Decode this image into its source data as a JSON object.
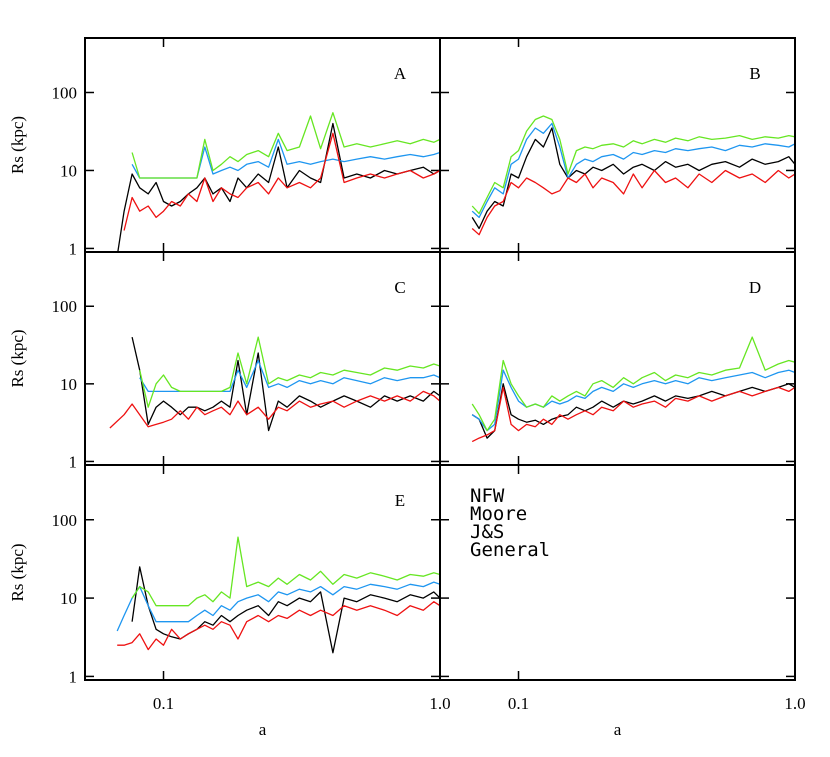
{
  "chart_data": [
    {
      "type": "line",
      "label": "A",
      "ylabel": "Rs (kpc)",
      "xlog": true,
      "ylog": true,
      "xlim": [
        0.052,
        1.0
      ],
      "ylim": [
        0.9,
        500
      ],
      "xticks": [
        0.1,
        {
          "value": 1,
          "label": "1.0"
        }
      ],
      "yticks": [
        1,
        10,
        100
      ],
      "x": [
        0.068,
        0.072,
        0.077,
        0.082,
        0.088,
        0.094,
        0.1,
        0.107,
        0.115,
        0.123,
        0.132,
        0.141,
        0.151,
        0.162,
        0.174,
        0.186,
        0.2,
        0.22,
        0.24,
        0.26,
        0.28,
        0.31,
        0.34,
        0.37,
        0.41,
        0.45,
        0.5,
        0.56,
        0.63,
        0.7,
        0.78,
        0.87,
        0.95,
        1.0
      ],
      "series": [
        {
          "name": "NFW",
          "color": "#000000",
          "values": [
            0.8,
            3,
            9,
            6,
            5,
            7,
            4,
            3.5,
            4,
            5,
            6,
            8,
            5,
            6,
            4,
            8,
            6,
            9,
            7,
            20,
            6,
            10,
            8,
            7,
            40,
            8,
            9,
            8,
            10,
            9,
            10,
            11,
            9,
            10
          ]
        },
        {
          "name": "Moore",
          "color": "#1e96f0",
          "values": [
            null,
            null,
            12,
            8,
            8,
            8,
            8,
            8,
            8,
            8,
            8,
            20,
            9,
            10,
            11,
            10,
            12,
            13,
            11,
            25,
            12,
            13,
            12,
            13,
            14,
            13,
            14,
            15,
            14,
            15,
            16,
            15,
            16,
            17
          ]
        },
        {
          "name": "J&S",
          "color": "#66e622",
          "values": [
            null,
            null,
            17,
            8,
            8,
            8,
            8,
            8,
            8,
            8,
            8,
            25,
            10,
            12,
            15,
            13,
            16,
            18,
            15,
            30,
            18,
            20,
            50,
            19,
            55,
            20,
            22,
            20,
            22,
            24,
            22,
            25,
            23,
            25
          ]
        },
        {
          "name": "General",
          "color": "#ee1111",
          "values": [
            null,
            1.7,
            4.5,
            3,
            3.5,
            2.5,
            3,
            4,
            3.5,
            5,
            4,
            8,
            4,
            6,
            5,
            4.5,
            6,
            7,
            5,
            8,
            6,
            7,
            6,
            8,
            30,
            7,
            8,
            9,
            8,
            9,
            10,
            8,
            9,
            10
          ]
        }
      ]
    },
    {
      "type": "line",
      "label": "B",
      "xlog": true,
      "ylog": true,
      "xlim": [
        0.052,
        1.0
      ],
      "ylim": [
        0.9,
        500
      ],
      "xticks": [
        0.1,
        {
          "value": 1,
          "label": "1.0"
        }
      ],
      "yticks": [
        1,
        10,
        100
      ],
      "x": [
        0.068,
        0.072,
        0.077,
        0.082,
        0.088,
        0.094,
        0.1,
        0.107,
        0.115,
        0.123,
        0.132,
        0.141,
        0.151,
        0.162,
        0.174,
        0.186,
        0.2,
        0.22,
        0.24,
        0.26,
        0.28,
        0.31,
        0.34,
        0.37,
        0.41,
        0.45,
        0.5,
        0.56,
        0.63,
        0.7,
        0.78,
        0.87,
        0.95,
        1.0
      ],
      "series": [
        {
          "name": "NFW",
          "color": "#000000",
          "values": [
            2.5,
            1.8,
            3,
            4,
            3.5,
            9,
            8,
            15,
            25,
            20,
            35,
            12,
            8,
            10,
            9,
            11,
            10,
            12,
            9,
            11,
            12,
            10,
            13,
            11,
            12,
            10,
            12,
            13,
            11,
            14,
            12,
            13,
            15,
            12
          ]
        },
        {
          "name": "Moore",
          "color": "#1e96f0",
          "values": [
            3,
            2.5,
            4,
            6,
            5,
            12,
            14,
            25,
            35,
            30,
            40,
            20,
            8,
            12,
            14,
            13,
            15,
            16,
            14,
            17,
            16,
            18,
            17,
            19,
            18,
            19,
            20,
            18,
            21,
            20,
            22,
            21,
            20,
            22
          ]
        },
        {
          "name": "J&S",
          "color": "#66e622",
          "values": [
            3.5,
            2.8,
            4.5,
            7,
            6,
            15,
            18,
            32,
            45,
            50,
            45,
            25,
            9,
            18,
            20,
            19,
            21,
            22,
            20,
            24,
            22,
            25,
            23,
            26,
            24,
            27,
            25,
            26,
            28,
            25,
            27,
            26,
            28,
            27
          ]
        },
        {
          "name": "General",
          "color": "#ee1111",
          "values": [
            1.8,
            1.5,
            2.5,
            3.5,
            4,
            7,
            6,
            8,
            7,
            6,
            5,
            5.5,
            8,
            7,
            9,
            6,
            8,
            7,
            5,
            9,
            6,
            10,
            7,
            8,
            6,
            9,
            7,
            10,
            8,
            9,
            7,
            10,
            8,
            9
          ]
        }
      ]
    },
    {
      "type": "line",
      "label": "C",
      "ylabel": "Rs (kpc)",
      "xlog": true,
      "ylog": true,
      "xlim": [
        0.052,
        1.0
      ],
      "ylim": [
        0.9,
        500
      ],
      "xticks": [
        0.1,
        {
          "value": 1,
          "label": "1.0"
        }
      ],
      "yticks": [
        1,
        10,
        100
      ],
      "x": [
        0.064,
        0.072,
        0.077,
        0.082,
        0.088,
        0.094,
        0.1,
        0.107,
        0.115,
        0.123,
        0.132,
        0.141,
        0.151,
        0.162,
        0.174,
        0.186,
        0.2,
        0.22,
        0.24,
        0.26,
        0.28,
        0.31,
        0.34,
        0.37,
        0.41,
        0.45,
        0.5,
        0.56,
        0.63,
        0.7,
        0.78,
        0.87,
        0.95,
        1.0
      ],
      "series": [
        {
          "name": "NFW",
          "color": "#000000",
          "values": [
            null,
            null,
            40,
            15,
            3,
            5,
            6,
            5,
            4,
            5,
            5,
            4.5,
            5,
            6,
            5,
            20,
            4,
            25,
            2.5,
            6,
            5,
            7,
            6,
            5,
            6,
            7,
            6,
            5,
            7,
            6,
            7,
            6,
            8,
            7
          ]
        },
        {
          "name": "Moore",
          "color": "#1e96f0",
          "values": [
            null,
            null,
            null,
            12,
            8,
            8,
            8,
            8,
            8,
            8,
            8,
            8,
            8,
            8,
            8,
            15,
            9,
            20,
            9,
            10,
            9,
            11,
            10,
            11,
            10,
            12,
            11,
            10,
            12,
            11,
            12,
            12,
            13,
            12
          ]
        },
        {
          "name": "J&S",
          "color": "#66e622",
          "values": [
            null,
            null,
            null,
            15,
            5,
            10,
            13,
            9,
            8,
            8,
            8,
            8,
            8,
            8,
            9,
            25,
            10,
            40,
            10,
            12,
            11,
            13,
            12,
            14,
            13,
            15,
            14,
            13,
            16,
            15,
            17,
            16,
            18,
            17
          ]
        },
        {
          "name": "General",
          "color": "#ee1111",
          "values": [
            2.7,
            4,
            5.5,
            4,
            2.8,
            3,
            3.2,
            3.5,
            4.5,
            3.5,
            5,
            4,
            4.5,
            5,
            4,
            6,
            4,
            5,
            3.5,
            5,
            4.5,
            6,
            5,
            5.5,
            6,
            5,
            6,
            7,
            6,
            7,
            6,
            8,
            7,
            6
          ]
        }
      ]
    },
    {
      "type": "line",
      "label": "D",
      "xlog": true,
      "ylog": true,
      "xlim": [
        0.052,
        1.0
      ],
      "ylim": [
        0.9,
        500
      ],
      "xticks": [
        0.1,
        {
          "value": 1,
          "label": "1.0"
        }
      ],
      "yticks": [
        1,
        10,
        100
      ],
      "x": [
        0.068,
        0.072,
        0.077,
        0.082,
        0.088,
        0.094,
        0.1,
        0.107,
        0.115,
        0.123,
        0.132,
        0.141,
        0.151,
        0.162,
        0.174,
        0.186,
        0.2,
        0.22,
        0.24,
        0.26,
        0.28,
        0.31,
        0.34,
        0.37,
        0.41,
        0.45,
        0.5,
        0.56,
        0.63,
        0.7,
        0.78,
        0.87,
        0.95,
        1.0
      ],
      "series": [
        {
          "name": "NFW",
          "color": "#000000",
          "values": [
            4,
            3.5,
            2,
            2.5,
            10,
            4,
            3.5,
            3.2,
            3.4,
            3,
            3.5,
            3.8,
            4,
            5,
            4.5,
            5,
            6,
            5,
            6,
            5.5,
            6,
            7,
            6,
            7,
            6.5,
            7,
            8,
            7,
            8,
            9,
            8,
            9,
            10,
            9
          ]
        },
        {
          "name": "Moore",
          "color": "#1e96f0",
          "values": [
            4,
            3.5,
            2.5,
            3,
            15,
            9,
            6,
            5,
            5.5,
            5,
            6,
            5.5,
            6,
            7,
            6.5,
            8,
            9,
            8,
            10,
            9,
            10,
            11,
            10,
            11,
            10,
            12,
            11,
            12,
            13,
            14,
            12,
            14,
            15,
            14
          ]
        },
        {
          "name": "J&S",
          "color": "#66e622",
          "values": [
            5.5,
            4,
            2.5,
            3.5,
            20,
            10,
            7,
            5,
            5.5,
            5,
            7,
            6,
            7,
            8,
            7,
            10,
            11,
            9,
            12,
            10,
            12,
            14,
            11,
            13,
            12,
            14,
            13,
            15,
            16,
            40,
            15,
            18,
            20,
            19
          ]
        },
        {
          "name": "General",
          "color": "#ee1111",
          "values": [
            1.8,
            2,
            2.2,
            2.5,
            9,
            3,
            2.5,
            3,
            2.8,
            3.5,
            3,
            4,
            3.5,
            4,
            4.5,
            4,
            5,
            4.5,
            6,
            5,
            5.5,
            6,
            5,
            6.5,
            6,
            7,
            6,
            7,
            8,
            7,
            8,
            9,
            8,
            9
          ]
        }
      ]
    },
    {
      "type": "line",
      "label": "E",
      "ylabel": "Rs (kpc)",
      "xlabel": "a",
      "xlog": true,
      "ylog": true,
      "xlim": [
        0.052,
        1.0
      ],
      "ylim": [
        0.9,
        500
      ],
      "xticks": [
        0.1,
        {
          "value": 1,
          "label": "1.0"
        }
      ],
      "yticks": [
        1,
        10,
        100
      ],
      "x": [
        0.068,
        0.072,
        0.077,
        0.082,
        0.088,
        0.094,
        0.1,
        0.107,
        0.115,
        0.123,
        0.132,
        0.141,
        0.151,
        0.162,
        0.174,
        0.186,
        0.2,
        0.22,
        0.24,
        0.26,
        0.28,
        0.31,
        0.34,
        0.37,
        0.41,
        0.45,
        0.5,
        0.56,
        0.63,
        0.7,
        0.78,
        0.87,
        0.95,
        1.0
      ],
      "series": [
        {
          "name": "NFW",
          "color": "#000000",
          "values": [
            null,
            null,
            5,
            25,
            8,
            4,
            3.5,
            3.2,
            3,
            3.5,
            4,
            5,
            4.5,
            6,
            5,
            6,
            7,
            8,
            6,
            9,
            8,
            10,
            9,
            12,
            2,
            10,
            9,
            11,
            10,
            9,
            11,
            10,
            12,
            10
          ]
        },
        {
          "name": "Moore",
          "color": "#1e96f0",
          "values": [
            3.8,
            6,
            10,
            14,
            8,
            5,
            5,
            5,
            5,
            5,
            6,
            7,
            6,
            8,
            7,
            9,
            10,
            11,
            9,
            12,
            11,
            13,
            12,
            14,
            11,
            14,
            13,
            15,
            14,
            13,
            15,
            14,
            16,
            15
          ]
        },
        {
          "name": "J&S",
          "color": "#66e622",
          "values": [
            null,
            null,
            10,
            14,
            12,
            8,
            8,
            8,
            8,
            8,
            10,
            11,
            9,
            12,
            10,
            60,
            14,
            16,
            14,
            18,
            15,
            20,
            17,
            22,
            15,
            20,
            18,
            21,
            19,
            17,
            20,
            19,
            21,
            20
          ]
        },
        {
          "name": "General",
          "color": "#ee1111",
          "values": [
            2.5,
            2.5,
            2.7,
            3.5,
            2.2,
            3,
            2.5,
            4,
            3,
            3.5,
            4,
            4.5,
            4,
            5,
            4.5,
            3,
            5,
            6,
            5,
            6,
            5.5,
            7,
            6,
            7,
            6,
            8,
            7,
            8,
            7,
            6,
            8,
            7,
            9,
            8
          ]
        }
      ]
    },
    {
      "type": "legend",
      "xlabel": "a",
      "legend": "upper left",
      "xlog": true,
      "ylog": true,
      "xlim": [
        0.052,
        1.0
      ],
      "ylim": [
        0.9,
        500
      ],
      "xticks": [
        0.1,
        {
          "value": 1,
          "label": "1.0"
        }
      ],
      "yticks": [
        1,
        10,
        100
      ]
    }
  ]
}
